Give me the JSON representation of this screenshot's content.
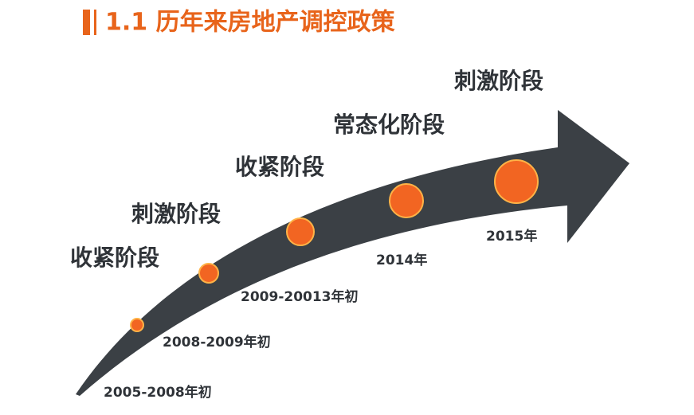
{
  "header": {
    "title": "1.1 历年来房地产调控政策"
  },
  "stages": [
    {
      "label": "收紧阶段",
      "period": "2005-2008年初"
    },
    {
      "label": "刺激阶段",
      "period": "2008-2009年初"
    },
    {
      "label": "收紧阶段",
      "period": "2009-20013年初"
    },
    {
      "label": "常态化阶段",
      "period": "2014年"
    },
    {
      "label": "刺激阶段",
      "period": "2015年"
    }
  ]
}
